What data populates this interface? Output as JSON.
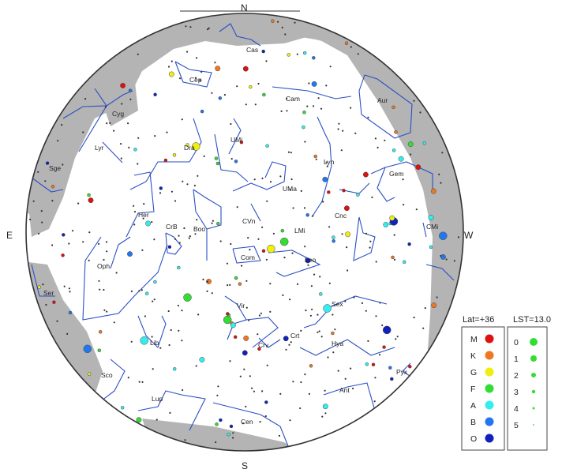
{
  "compass": {
    "north": "N",
    "south": "S",
    "east": "E",
    "west": "W"
  },
  "constellations": [
    {
      "key": "cas",
      "label": "Cas"
    },
    {
      "key": "cep",
      "label": "Cep"
    },
    {
      "key": "cam",
      "label": "Cam"
    },
    {
      "key": "aur",
      "label": "Aur"
    },
    {
      "key": "cyg",
      "label": "Cyg"
    },
    {
      "key": "lyr",
      "label": "Lyr"
    },
    {
      "key": "sge",
      "label": "Sge"
    },
    {
      "key": "dra",
      "label": "Dra"
    },
    {
      "key": "umi",
      "label": "UMi"
    },
    {
      "key": "uma",
      "label": "UMa"
    },
    {
      "key": "lyn",
      "label": "Lyn"
    },
    {
      "key": "gem",
      "label": "Gem"
    },
    {
      "key": "cmi",
      "label": "CMi"
    },
    {
      "key": "her",
      "label": "Her"
    },
    {
      "key": "crb",
      "label": "CrB"
    },
    {
      "key": "boo",
      "label": "Boo"
    },
    {
      "key": "cvn",
      "label": "CVn"
    },
    {
      "key": "lmi",
      "label": "LMi"
    },
    {
      "key": "cnc",
      "label": "Cnc"
    },
    {
      "key": "com",
      "label": "Com"
    },
    {
      "key": "leo",
      "label": "Leo"
    },
    {
      "key": "oph",
      "label": "Oph"
    },
    {
      "key": "ser",
      "label": "Ser"
    },
    {
      "key": "vir",
      "label": "Vir"
    },
    {
      "key": "sex",
      "label": "Sex"
    },
    {
      "key": "crv",
      "label": "Crv"
    },
    {
      "key": "crt",
      "label": "Crt"
    },
    {
      "key": "hya",
      "label": "Hya"
    },
    {
      "key": "lib",
      "label": "Lib"
    },
    {
      "key": "sco",
      "label": "Sco"
    },
    {
      "key": "lup",
      "label": "Lup"
    },
    {
      "key": "cen",
      "label": "Cen"
    },
    {
      "key": "ant",
      "label": "Ant"
    },
    {
      "key": "pyx",
      "label": "Pyx"
    }
  ],
  "legend": {
    "lat_title": "Lat=+36",
    "lst_title": "LST=13.0",
    "spectral_classes": [
      {
        "label": "M",
        "color": "#dd1111"
      },
      {
        "label": "K",
        "color": "#ee7722"
      },
      {
        "label": "G",
        "color": "#eeee11"
      },
      {
        "label": "F",
        "color": "#33dd33"
      },
      {
        "label": "A",
        "color": "#33eeee"
      },
      {
        "label": "B",
        "color": "#2277ee"
      },
      {
        "label": "O",
        "color": "#1122bb"
      }
    ],
    "magnitudes": [
      {
        "label": "0"
      },
      {
        "label": "1"
      },
      {
        "label": "2"
      },
      {
        "label": "3"
      },
      {
        "label": "4"
      },
      {
        "label": "5"
      }
    ]
  },
  "colors": {
    "milky_way": "#b4b4b4",
    "constellation_lines": "#2a4fc6",
    "horizon": "#333333"
  }
}
